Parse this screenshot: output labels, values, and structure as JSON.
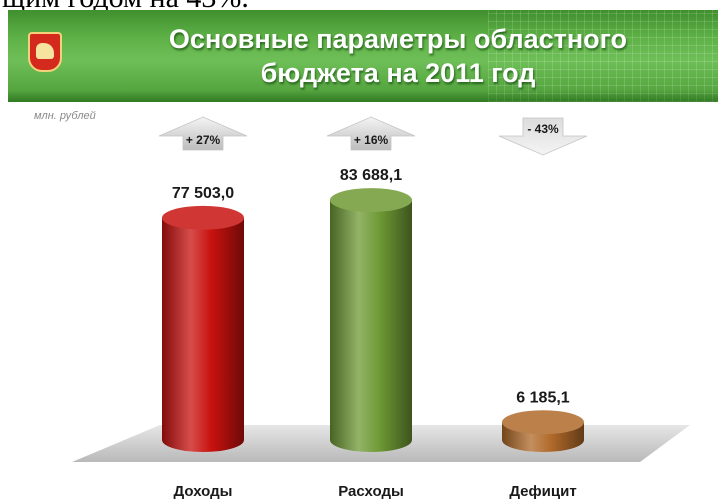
{
  "top_text": "щим годом на 43%.",
  "header": {
    "title_line1": "Основные параметры областного",
    "title_line2": "бюджета на 2011 год"
  },
  "unit_label": "млн. рублей",
  "chart_data": {
    "type": "bar",
    "title": "Основные параметры областного бюджета на 2011 год",
    "ylabel": "млн. рублей",
    "categories": [
      "Доходы",
      "Расходы",
      "Дефицит"
    ],
    "values": [
      77503.0,
      83688.1,
      6185.1
    ],
    "value_labels": [
      "77 503,0",
      "83 688,1",
      "6 185,1"
    ],
    "changes": [
      "+ 27%",
      "+ 16%",
      "- 43%"
    ],
    "change_direction": [
      "up",
      "up",
      "down"
    ],
    "ylim": [
      0,
      90000
    ],
    "grid": false,
    "colors": [
      "#c8120f",
      "#6f9a35",
      "#b06a2a"
    ]
  }
}
